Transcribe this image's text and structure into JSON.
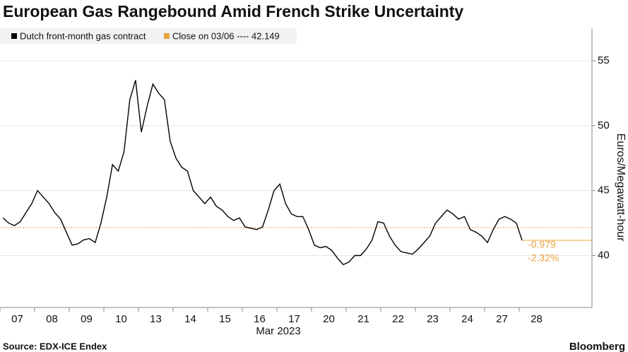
{
  "chart_data": {
    "type": "line",
    "title": "European Gas Rangebound Amid French Strike Uncertainty",
    "x_label": "Mar 2023",
    "y_label": "Euros/Megawatt-hour",
    "source": "Source: EDX-ICE Endex",
    "brand": "Bloomberg",
    "categories": [
      null,
      null,
      null,
      "07",
      null,
      null,
      null,
      null,
      null,
      "08",
      null,
      null,
      null,
      null,
      null,
      "09",
      null,
      null,
      null,
      null,
      null,
      "10",
      null,
      null,
      null,
      null,
      null,
      "13",
      null,
      null,
      null,
      null,
      null,
      "14",
      null,
      null,
      null,
      null,
      null,
      "15",
      null,
      null,
      null,
      null,
      null,
      "16",
      null,
      null,
      null,
      null,
      null,
      "17",
      null,
      null,
      null,
      null,
      null,
      "20",
      null,
      null,
      null,
      null,
      null,
      "21",
      null,
      null,
      null,
      null,
      null,
      "22",
      null,
      null,
      null,
      null,
      null,
      "23",
      null,
      null,
      null,
      null,
      null,
      "24",
      null,
      null,
      null,
      null,
      null,
      "27",
      null,
      null,
      null,
      null,
      null,
      "28",
      null,
      null
    ],
    "series": [
      {
        "name": "Dutch front-month gas contract",
        "color": "#000000",
        "values": [
          42.9,
          42.5,
          42.3,
          42.6,
          43.3,
          44.0,
          45.0,
          44.5,
          44.0,
          43.3,
          42.8,
          41.8,
          40.8,
          40.9,
          41.2,
          41.3,
          41.0,
          42.5,
          44.5,
          47.0,
          46.5,
          48.0,
          52.0,
          53.5,
          49.5,
          51.5,
          53.2,
          52.5,
          52.0,
          48.8,
          47.5,
          46.8,
          46.5,
          45.0,
          44.5,
          44.0,
          44.5,
          43.8,
          43.5,
          43.0,
          42.7,
          42.9,
          42.2,
          42.1,
          42.0,
          42.2,
          43.5,
          45.0,
          45.5,
          44.0,
          43.2,
          43.0,
          43.0,
          42.0,
          40.8,
          40.6,
          40.7,
          40.4,
          39.8,
          39.3,
          39.5,
          40.0,
          40.0,
          40.5,
          41.2,
          42.6,
          42.5,
          41.5,
          40.8,
          40.3,
          40.2,
          40.1,
          40.5,
          41.0,
          41.5,
          42.5,
          43.0,
          43.5,
          43.2,
          42.8,
          43.0,
          42.0,
          41.8,
          41.5,
          41.0,
          42.0,
          42.8,
          43.0,
          42.8,
          42.5,
          41.17,
          null,
          null,
          null,
          null,
          null
        ]
      }
    ],
    "reference": {
      "name": "Close on 03/06 ---- 42.149",
      "value": 42.149,
      "color": "#e8a33d"
    },
    "change_labels": [
      "-0.979",
      "-2.32%"
    ],
    "ylim": [
      36,
      57.5
    ],
    "yticks": [
      40,
      45,
      50,
      55
    ],
    "grid": true
  }
}
